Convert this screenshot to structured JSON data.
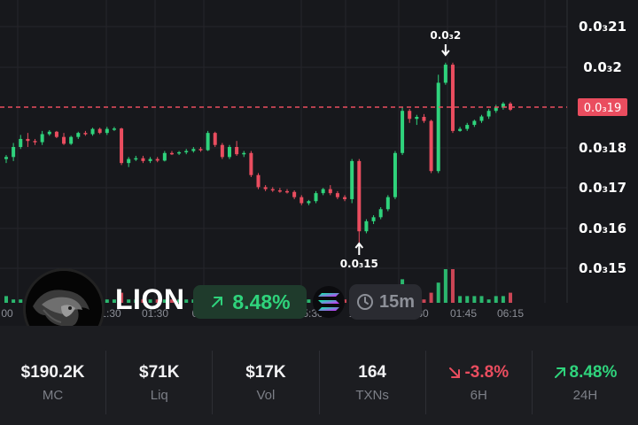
{
  "chart": {
    "price_labels": [
      "0.0₃21",
      "0.0₃2",
      "0.0₃18",
      "0.0₃17",
      "0.0₃16",
      "0.0₃15"
    ],
    "current_price": "0.0₃19",
    "high_marker": "0.0₃2",
    "low_marker": "0.0₃15",
    "time_labels": [
      "00",
      "1:30",
      "01:30",
      "0",
      "5:30",
      "1",
      "30",
      "01:45",
      "06:15"
    ],
    "colors": {
      "up": "#2fd37c",
      "down": "#ea4d5f",
      "current_line": "#ea4d5f"
    }
  },
  "chart_data": {
    "type": "candlestick",
    "y_ticks": [
      "0.0₃21",
      "0.0₃2",
      "0.0₃18",
      "0.0₃17",
      "0.0₃16",
      "0.0₃15"
    ],
    "x_ticks": [
      "00",
      "1:30",
      "01:30",
      "0",
      "5:30",
      "1",
      "30",
      "01:45",
      "06:15"
    ],
    "candles": [
      [
        0.000177,
        0.000178,
        0.000176,
        0.0001775
      ],
      [
        0.0001775,
        0.000181,
        0.0001765,
        0.00018
      ],
      [
        0.00018,
        0.000183,
        0.0001795,
        0.000182
      ],
      [
        0.000182,
        0.0001835,
        0.00018,
        0.0001815
      ],
      [
        0.0001815,
        0.000182,
        0.0001805,
        0.0001812
      ],
      [
        0.0001812,
        0.000184,
        0.0001805,
        0.0001832
      ],
      [
        0.0001832,
        0.0001842,
        0.0001828,
        0.0001838
      ],
      [
        0.0001838,
        0.000184,
        0.0001822,
        0.0001825
      ],
      [
        0.0001825,
        0.0001835,
        0.0001805,
        0.0001808
      ],
      [
        0.0001808,
        0.0001828,
        0.0001805,
        0.0001825
      ],
      [
        0.0001825,
        0.0001838,
        0.000182,
        0.0001835
      ],
      [
        0.0001835,
        0.000184,
        0.0001828,
        0.0001832
      ],
      [
        0.0001832,
        0.0001848,
        0.0001828,
        0.0001845
      ],
      [
        0.0001845,
        0.0001848,
        0.0001832,
        0.0001835
      ],
      [
        0.0001835,
        0.000185,
        0.000183,
        0.0001845
      ],
      [
        0.0001845,
        0.000185,
        0.000184,
        0.0001846
      ],
      [
        0.0001846,
        0.0001848,
        0.0001755,
        0.000176
      ],
      [
        0.000176,
        0.0001775,
        0.000175,
        0.000177
      ],
      [
        0.000177,
        0.0001778,
        0.0001765,
        0.0001772
      ],
      [
        0.0001772,
        0.0001778,
        0.000176,
        0.0001765
      ],
      [
        0.0001765,
        0.0001775,
        0.000176,
        0.000177
      ],
      [
        0.000177,
        0.0001775,
        0.0001762,
        0.0001766
      ],
      [
        0.0001766,
        0.000179,
        0.0001764,
        0.0001785
      ],
      [
        0.0001785,
        0.000179,
        0.000178,
        0.0001784
      ],
      [
        0.0001784,
        0.000179,
        0.000178,
        0.0001787
      ],
      [
        0.0001787,
        0.0001795,
        0.0001782,
        0.000179
      ],
      [
        0.000179,
        0.00018,
        0.0001786,
        0.0001795
      ],
      [
        0.0001795,
        0.00018,
        0.0001788,
        0.0001792
      ],
      [
        0.0001792,
        0.000184,
        0.000179,
        0.0001835
      ],
      [
        0.0001835,
        0.0001838,
        0.00018,
        0.0001805
      ],
      [
        0.0001805,
        0.000181,
        0.000177,
        0.0001775
      ],
      [
        0.0001775,
        0.0001805,
        0.000177,
        0.00018
      ],
      [
        0.00018,
        0.0001815,
        0.0001778,
        0.0001782
      ],
      [
        0.0001782,
        0.000179,
        0.0001775,
        0.0001785
      ],
      [
        0.0001785,
        0.000179,
        0.0001725,
        0.000173
      ],
      [
        0.000173,
        0.0001735,
        0.0001695,
        0.00017
      ],
      [
        0.00017,
        0.0001705,
        0.000169,
        0.0001695
      ],
      [
        0.0001695,
        0.00017,
        0.0001688,
        0.0001692
      ],
      [
        0.0001692,
        0.0001698,
        0.0001686,
        0.000169
      ],
      [
        0.000169,
        0.0001695,
        0.0001684,
        0.0001688
      ],
      [
        0.0001688,
        0.0001692,
        0.000167,
        0.0001675
      ],
      [
        0.0001675,
        0.000168,
        0.0001655,
        0.000166
      ],
      [
        0.000166,
        0.0001668,
        0.0001655,
        0.0001665
      ],
      [
        0.0001665,
        0.000169,
        0.000166,
        0.0001685
      ],
      [
        0.0001685,
        0.0001698,
        0.000168,
        0.0001695
      ],
      [
        0.0001695,
        0.0001705,
        0.000168,
        0.0001685
      ],
      [
        0.0001685,
        0.000169,
        0.000167,
        0.0001675
      ],
      [
        0.0001675,
        0.000168,
        0.0001665,
        0.000167
      ],
      [
        0.000167,
        0.000177,
        0.000166,
        0.0001765
      ],
      [
        0.0001765,
        0.000177,
        0.000154,
        0.000159
      ],
      [
        0.000159,
        0.000162,
        0.0001585,
        0.0001615
      ],
      [
        0.0001615,
        0.000163,
        0.0001608,
        0.0001625
      ],
      [
        0.0001625,
        0.000165,
        0.000162,
        0.0001645
      ],
      [
        0.0001645,
        0.000168,
        0.000164,
        0.0001675
      ],
      [
        0.0001675,
        0.000179,
        0.000167,
        0.0001785
      ],
      [
        0.0001785,
        0.00019,
        0.000178,
        0.000189
      ],
      [
        0.000189,
        0.0001895,
        0.000186,
        0.000187
      ],
      [
        0.000187,
        0.000188,
        0.0001855,
        0.0001875
      ],
      [
        0.0001875,
        0.0001882,
        0.000186,
        0.0001865
      ],
      [
        0.0001865,
        0.0001868,
        0.0001735,
        0.000174
      ],
      [
        0.000174,
        0.000198,
        0.0001735,
        0.000196
      ],
      [
        0.000196,
        0.000201,
        0.0001955,
        0.0002005
      ],
      [
        0.0002005,
        0.000201,
        0.0001835,
        0.000184
      ],
      [
        0.000184,
        0.000185,
        0.0001838,
        0.0001845
      ],
      [
        0.0001845,
        0.000186,
        0.000184,
        0.0001855
      ],
      [
        0.0001855,
        0.0001868,
        0.000185,
        0.0001865
      ],
      [
        0.0001865,
        0.000188,
        0.000186,
        0.0001876
      ],
      [
        0.0001876,
        0.0001895,
        0.000187,
        0.000189
      ],
      [
        0.000189,
        0.0001905,
        0.0001885,
        0.0001898
      ],
      [
        0.0001898,
        0.0001912,
        0.0001893,
        0.0001908
      ],
      [
        0.0001908,
        0.0001912,
        0.000189,
        0.0001893
      ]
    ],
    "volume": [
      0.2,
      0.1,
      0.1,
      0.1,
      0.1,
      0.1,
      0.1,
      0.1,
      0.1,
      0.1,
      0.1,
      0.1,
      0.1,
      0.1,
      0.1,
      0.1,
      0.3,
      0.1,
      0.1,
      0.1,
      0.1,
      0.1,
      0.1,
      0.1,
      0.1,
      0.1,
      0.1,
      0.1,
      0.2,
      0.1,
      0.1,
      0.1,
      0.1,
      0.1,
      0.2,
      0.1,
      0.1,
      0.1,
      0.1,
      0.1,
      0.1,
      0.1,
      0.1,
      0.1,
      0.1,
      0.1,
      0.1,
      0.1,
      0.3,
      0.5,
      0.1,
      0.1,
      0.2,
      0.2,
      0.4,
      0.7,
      0.1,
      0.1,
      0.1,
      0.3,
      0.6,
      1.0,
      1.0,
      0.2,
      0.2,
      0.2,
      0.2,
      0.1,
      0.2,
      0.2,
      0.3
    ]
  },
  "token": {
    "name": "LION",
    "change": "8.48%",
    "interval": "15m",
    "avatar_icon": "lion-avatar",
    "chain_icon": "solana-icon"
  },
  "stats": [
    {
      "value": "$190.2K",
      "label": "MC"
    },
    {
      "value": "$71K",
      "label": "Liq"
    },
    {
      "value": "$17K",
      "label": "Vol"
    },
    {
      "value": "164",
      "label": "TXNs"
    },
    {
      "value": "-3.8%",
      "label": "6H",
      "trend": "down"
    },
    {
      "value": "8.48%",
      "label": "24H",
      "trend": "up"
    }
  ]
}
